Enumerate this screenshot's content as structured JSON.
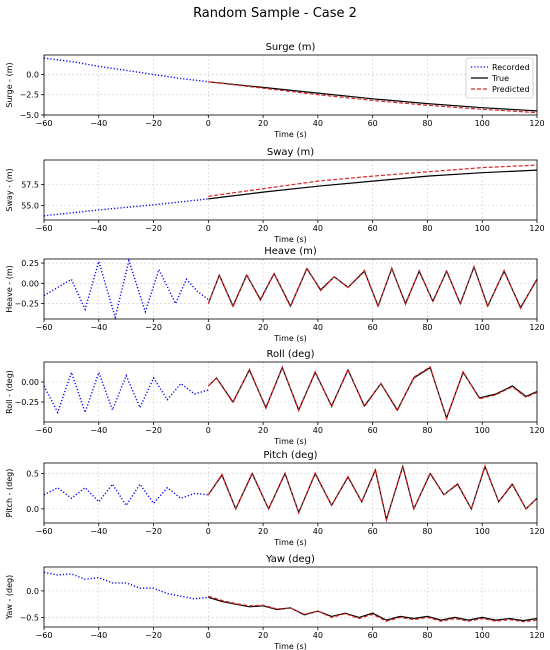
{
  "figure": {
    "title": "Random Sample - Case 2",
    "legend": {
      "placement": "top-right of first panel",
      "entries": [
        {
          "name": "Recorded",
          "color": "#0000ff",
          "style": "dotted"
        },
        {
          "name": "True",
          "color": "#000000",
          "style": "solid"
        },
        {
          "name": "Predicted",
          "color": "#d62728",
          "style": "dashed"
        }
      ]
    }
  },
  "chart_data": [
    {
      "type": "line",
      "title": "Surge (m)",
      "xlabel": "Time (s)",
      "ylabel": "Surge - (m)",
      "xlim": [
        -60,
        120
      ],
      "ylim": [
        -5.0,
        2.4
      ],
      "xticks": [
        -60,
        -40,
        -20,
        0,
        20,
        40,
        60,
        80,
        100,
        120
      ],
      "yticks": [
        -5.0,
        -2.5,
        0.0
      ],
      "ytick_labels": [
        "−5.0",
        "−2.5",
        "0.0"
      ],
      "grid": true,
      "series": [
        {
          "name": "Recorded",
          "x": [
            -60,
            -50,
            -40,
            -30,
            -20,
            -10,
            0
          ],
          "y": [
            2.0,
            1.6,
            1.0,
            0.5,
            0.0,
            -0.5,
            -0.9
          ]
        },
        {
          "name": "True",
          "x": [
            0,
            20,
            40,
            60,
            80,
            100,
            120
          ],
          "y": [
            -0.9,
            -1.6,
            -2.3,
            -3.0,
            -3.6,
            -4.1,
            -4.5
          ]
        },
        {
          "name": "Predicted",
          "x": [
            0,
            20,
            40,
            60,
            80,
            100,
            120
          ],
          "y": [
            -0.9,
            -1.7,
            -2.5,
            -3.2,
            -3.8,
            -4.3,
            -4.7
          ]
        }
      ]
    },
    {
      "type": "line",
      "title": "Sway (m)",
      "xlabel": "Time (s)",
      "ylabel": "Sway - (m)",
      "xlim": [
        -60,
        120
      ],
      "ylim": [
        53.3,
        60.4
      ],
      "xticks": [
        -60,
        -40,
        -20,
        0,
        20,
        40,
        60,
        80,
        100,
        120
      ],
      "yticks": [
        55.0,
        57.5
      ],
      "ytick_labels": [
        "55.0",
        "57.5"
      ],
      "grid": true,
      "series": [
        {
          "name": "Recorded",
          "x": [
            -60,
            -40,
            -20,
            0
          ],
          "y": [
            53.8,
            54.5,
            55.1,
            55.8
          ]
        },
        {
          "name": "True",
          "x": [
            0,
            20,
            40,
            60,
            80,
            100,
            120
          ],
          "y": [
            55.8,
            56.6,
            57.3,
            57.9,
            58.5,
            58.9,
            59.2
          ]
        },
        {
          "name": "Predicted",
          "x": [
            0,
            20,
            40,
            60,
            80,
            100,
            120
          ],
          "y": [
            56.1,
            57.0,
            57.9,
            58.5,
            59.0,
            59.5,
            59.8
          ]
        }
      ]
    },
    {
      "type": "line",
      "title": "Heave (m)",
      "xlabel": "Time (s)",
      "ylabel": "Heave - (m)",
      "xlim": [
        -60,
        120
      ],
      "ylim": [
        -0.44,
        0.3
      ],
      "xticks": [
        -60,
        -40,
        -20,
        0,
        20,
        40,
        60,
        80,
        100,
        120
      ],
      "yticks": [
        -0.25,
        0.0,
        0.25
      ],
      "ytick_labels": [
        "−0.25",
        "0.00",
        "0.25"
      ],
      "grid": true,
      "series": [
        {
          "name": "Recorded",
          "x": [
            -60,
            -50,
            -45,
            -40,
            -34,
            -29,
            -23,
            -18,
            -12,
            -8,
            -4,
            0
          ],
          "y": [
            -0.15,
            0.05,
            -0.32,
            0.27,
            -0.42,
            0.28,
            -0.35,
            0.17,
            -0.25,
            0.05,
            -0.1,
            -0.2
          ]
        },
        {
          "name": "True",
          "x": [
            0,
            4,
            9,
            14,
            19,
            24,
            30,
            36,
            41,
            46,
            51,
            57,
            62,
            67,
            72,
            77,
            82,
            87,
            92,
            97,
            102,
            108,
            114,
            120
          ],
          "y": [
            -0.25,
            0.1,
            -0.28,
            0.1,
            -0.2,
            0.12,
            -0.28,
            0.18,
            -0.08,
            0.08,
            -0.05,
            0.15,
            -0.28,
            0.18,
            -0.25,
            0.15,
            -0.22,
            0.15,
            -0.25,
            0.2,
            -0.28,
            0.15,
            -0.3,
            0.05
          ]
        },
        {
          "name": "Predicted",
          "x": [
            0,
            4,
            9,
            14,
            19,
            24,
            30,
            36,
            41,
            46,
            51,
            57,
            62,
            67,
            72,
            77,
            82,
            87,
            92,
            97,
            102,
            108,
            114,
            120
          ],
          "y": [
            -0.25,
            0.1,
            -0.29,
            0.11,
            -0.21,
            0.12,
            -0.29,
            0.19,
            -0.09,
            0.08,
            -0.05,
            0.16,
            -0.29,
            0.19,
            -0.26,
            0.16,
            -0.23,
            0.16,
            -0.26,
            0.21,
            -0.29,
            0.16,
            -0.31,
            0.06
          ]
        }
      ]
    },
    {
      "type": "line",
      "title": "Roll (deg)",
      "xlabel": "Time (s)",
      "ylabel": "Roll - (deg)",
      "xlim": [
        -60,
        120
      ],
      "ylim": [
        -0.5,
        0.25
      ],
      "xticks": [
        -60,
        -40,
        -20,
        0,
        20,
        40,
        60,
        80,
        100,
        120
      ],
      "yticks": [
        -0.25,
        0.0
      ],
      "ytick_labels": [
        "−0.25",
        "0.00"
      ],
      "grid": true,
      "series": [
        {
          "name": "Recorded",
          "x": [
            -60,
            -55,
            -50,
            -45,
            -40,
            -35,
            -30,
            -25,
            -20,
            -15,
            -10,
            -5,
            0
          ],
          "y": [
            -0.05,
            -0.38,
            0.12,
            -0.38,
            0.12,
            -0.35,
            0.08,
            -0.32,
            0.05,
            -0.22,
            -0.02,
            -0.15,
            -0.1
          ]
        },
        {
          "name": "True",
          "x": [
            0,
            3,
            9,
            15,
            21,
            27,
            33,
            39,
            45,
            51,
            57,
            63,
            69,
            75,
            81,
            87,
            93,
            99,
            105,
            111,
            116,
            120
          ],
          "y": [
            -0.05,
            0.05,
            -0.25,
            0.15,
            -0.32,
            0.18,
            -0.35,
            0.12,
            -0.3,
            0.15,
            -0.3,
            -0.02,
            -0.35,
            0.05,
            0.18,
            -0.45,
            0.12,
            -0.2,
            -0.15,
            -0.05,
            -0.18,
            -0.12
          ]
        },
        {
          "name": "Predicted",
          "x": [
            0,
            3,
            9,
            15,
            21,
            27,
            33,
            39,
            45,
            51,
            57,
            63,
            69,
            75,
            81,
            87,
            93,
            99,
            105,
            111,
            116,
            120
          ],
          "y": [
            -0.05,
            0.05,
            -0.26,
            0.16,
            -0.33,
            0.19,
            -0.36,
            0.13,
            -0.31,
            0.16,
            -0.31,
            -0.02,
            -0.36,
            0.06,
            0.19,
            -0.46,
            0.13,
            -0.21,
            -0.16,
            -0.06,
            -0.19,
            -0.13
          ]
        }
      ]
    },
    {
      "type": "line",
      "title": "Pitch (deg)",
      "xlabel": "Time (s)",
      "ylabel": "Pitch - (deg)",
      "xlim": [
        -60,
        120
      ],
      "ylim": [
        -0.2,
        0.65
      ],
      "xticks": [
        -60,
        -40,
        -20,
        0,
        20,
        40,
        60,
        80,
        100,
        120
      ],
      "yticks": [
        0.0,
        0.5
      ],
      "ytick_labels": [
        "0.0",
        "0.5"
      ],
      "grid": true,
      "series": [
        {
          "name": "Recorded",
          "x": [
            -60,
            -55,
            -50,
            -45,
            -40,
            -35,
            -30,
            -25,
            -20,
            -15,
            -10,
            -5,
            0
          ],
          "y": [
            0.2,
            0.3,
            0.15,
            0.3,
            0.1,
            0.35,
            0.05,
            0.35,
            0.08,
            0.3,
            0.15,
            0.22,
            0.2
          ]
        },
        {
          "name": "True",
          "x": [
            0,
            5,
            10,
            16,
            22,
            28,
            33,
            39,
            45,
            51,
            56,
            61,
            65,
            71,
            75,
            81,
            86,
            91,
            96,
            101,
            106,
            111,
            116,
            120
          ],
          "y": [
            0.2,
            0.48,
            0.0,
            0.5,
            0.0,
            0.5,
            -0.05,
            0.5,
            0.05,
            0.45,
            0.1,
            0.55,
            -0.15,
            0.6,
            0.0,
            0.5,
            0.2,
            0.35,
            0.0,
            0.6,
            0.1,
            0.35,
            0.0,
            0.15
          ]
        },
        {
          "name": "Predicted",
          "x": [
            0,
            5,
            10,
            16,
            22,
            28,
            33,
            39,
            45,
            51,
            56,
            61,
            65,
            71,
            75,
            81,
            86,
            91,
            96,
            101,
            106,
            111,
            116,
            120
          ],
          "y": [
            0.2,
            0.49,
            0.0,
            0.51,
            0.0,
            0.51,
            -0.06,
            0.51,
            0.05,
            0.46,
            0.1,
            0.56,
            -0.16,
            0.61,
            0.0,
            0.51,
            0.2,
            0.36,
            0.0,
            0.61,
            0.1,
            0.36,
            0.0,
            0.15
          ]
        }
      ]
    },
    {
      "type": "line",
      "title": "Yaw (deg)",
      "xlabel": "Time (s)",
      "ylabel": "Yaw - (deg)",
      "xlim": [
        -60,
        120
      ],
      "ylim": [
        -0.68,
        0.45
      ],
      "xticks": [
        -60,
        -40,
        -20,
        0,
        20,
        40,
        60,
        80,
        100,
        120
      ],
      "yticks": [
        -0.5,
        0.0
      ],
      "ytick_labels": [
        "−0.5",
        "0.0"
      ],
      "grid": true,
      "series": [
        {
          "name": "Recorded",
          "x": [
            -60,
            -55,
            -50,
            -45,
            -40,
            -35,
            -30,
            -25,
            -20,
            -15,
            -10,
            -5,
            0
          ],
          "y": [
            0.35,
            0.3,
            0.32,
            0.22,
            0.25,
            0.15,
            0.15,
            0.05,
            0.05,
            -0.05,
            -0.1,
            -0.15,
            -0.12
          ]
        },
        {
          "name": "True",
          "x": [
            0,
            5,
            10,
            15,
            20,
            25,
            30,
            35,
            40,
            45,
            50,
            55,
            60,
            65,
            70,
            75,
            80,
            85,
            90,
            95,
            100,
            105,
            110,
            115,
            120
          ],
          "y": [
            -0.12,
            -0.2,
            -0.25,
            -0.3,
            -0.28,
            -0.35,
            -0.32,
            -0.45,
            -0.38,
            -0.48,
            -0.42,
            -0.5,
            -0.42,
            -0.55,
            -0.48,
            -0.52,
            -0.48,
            -0.55,
            -0.5,
            -0.55,
            -0.5,
            -0.55,
            -0.52,
            -0.56,
            -0.52
          ]
        },
        {
          "name": "Predicted",
          "x": [
            0,
            5,
            10,
            15,
            20,
            25,
            30,
            35,
            40,
            45,
            50,
            55,
            60,
            65,
            70,
            75,
            80,
            85,
            90,
            95,
            100,
            105,
            110,
            115,
            120
          ],
          "y": [
            -0.1,
            -0.18,
            -0.24,
            -0.28,
            -0.27,
            -0.34,
            -0.32,
            -0.44,
            -0.38,
            -0.5,
            -0.43,
            -0.52,
            -0.44,
            -0.57,
            -0.5,
            -0.54,
            -0.5,
            -0.57,
            -0.52,
            -0.57,
            -0.52,
            -0.57,
            -0.54,
            -0.58,
            -0.55
          ]
        }
      ]
    }
  ]
}
